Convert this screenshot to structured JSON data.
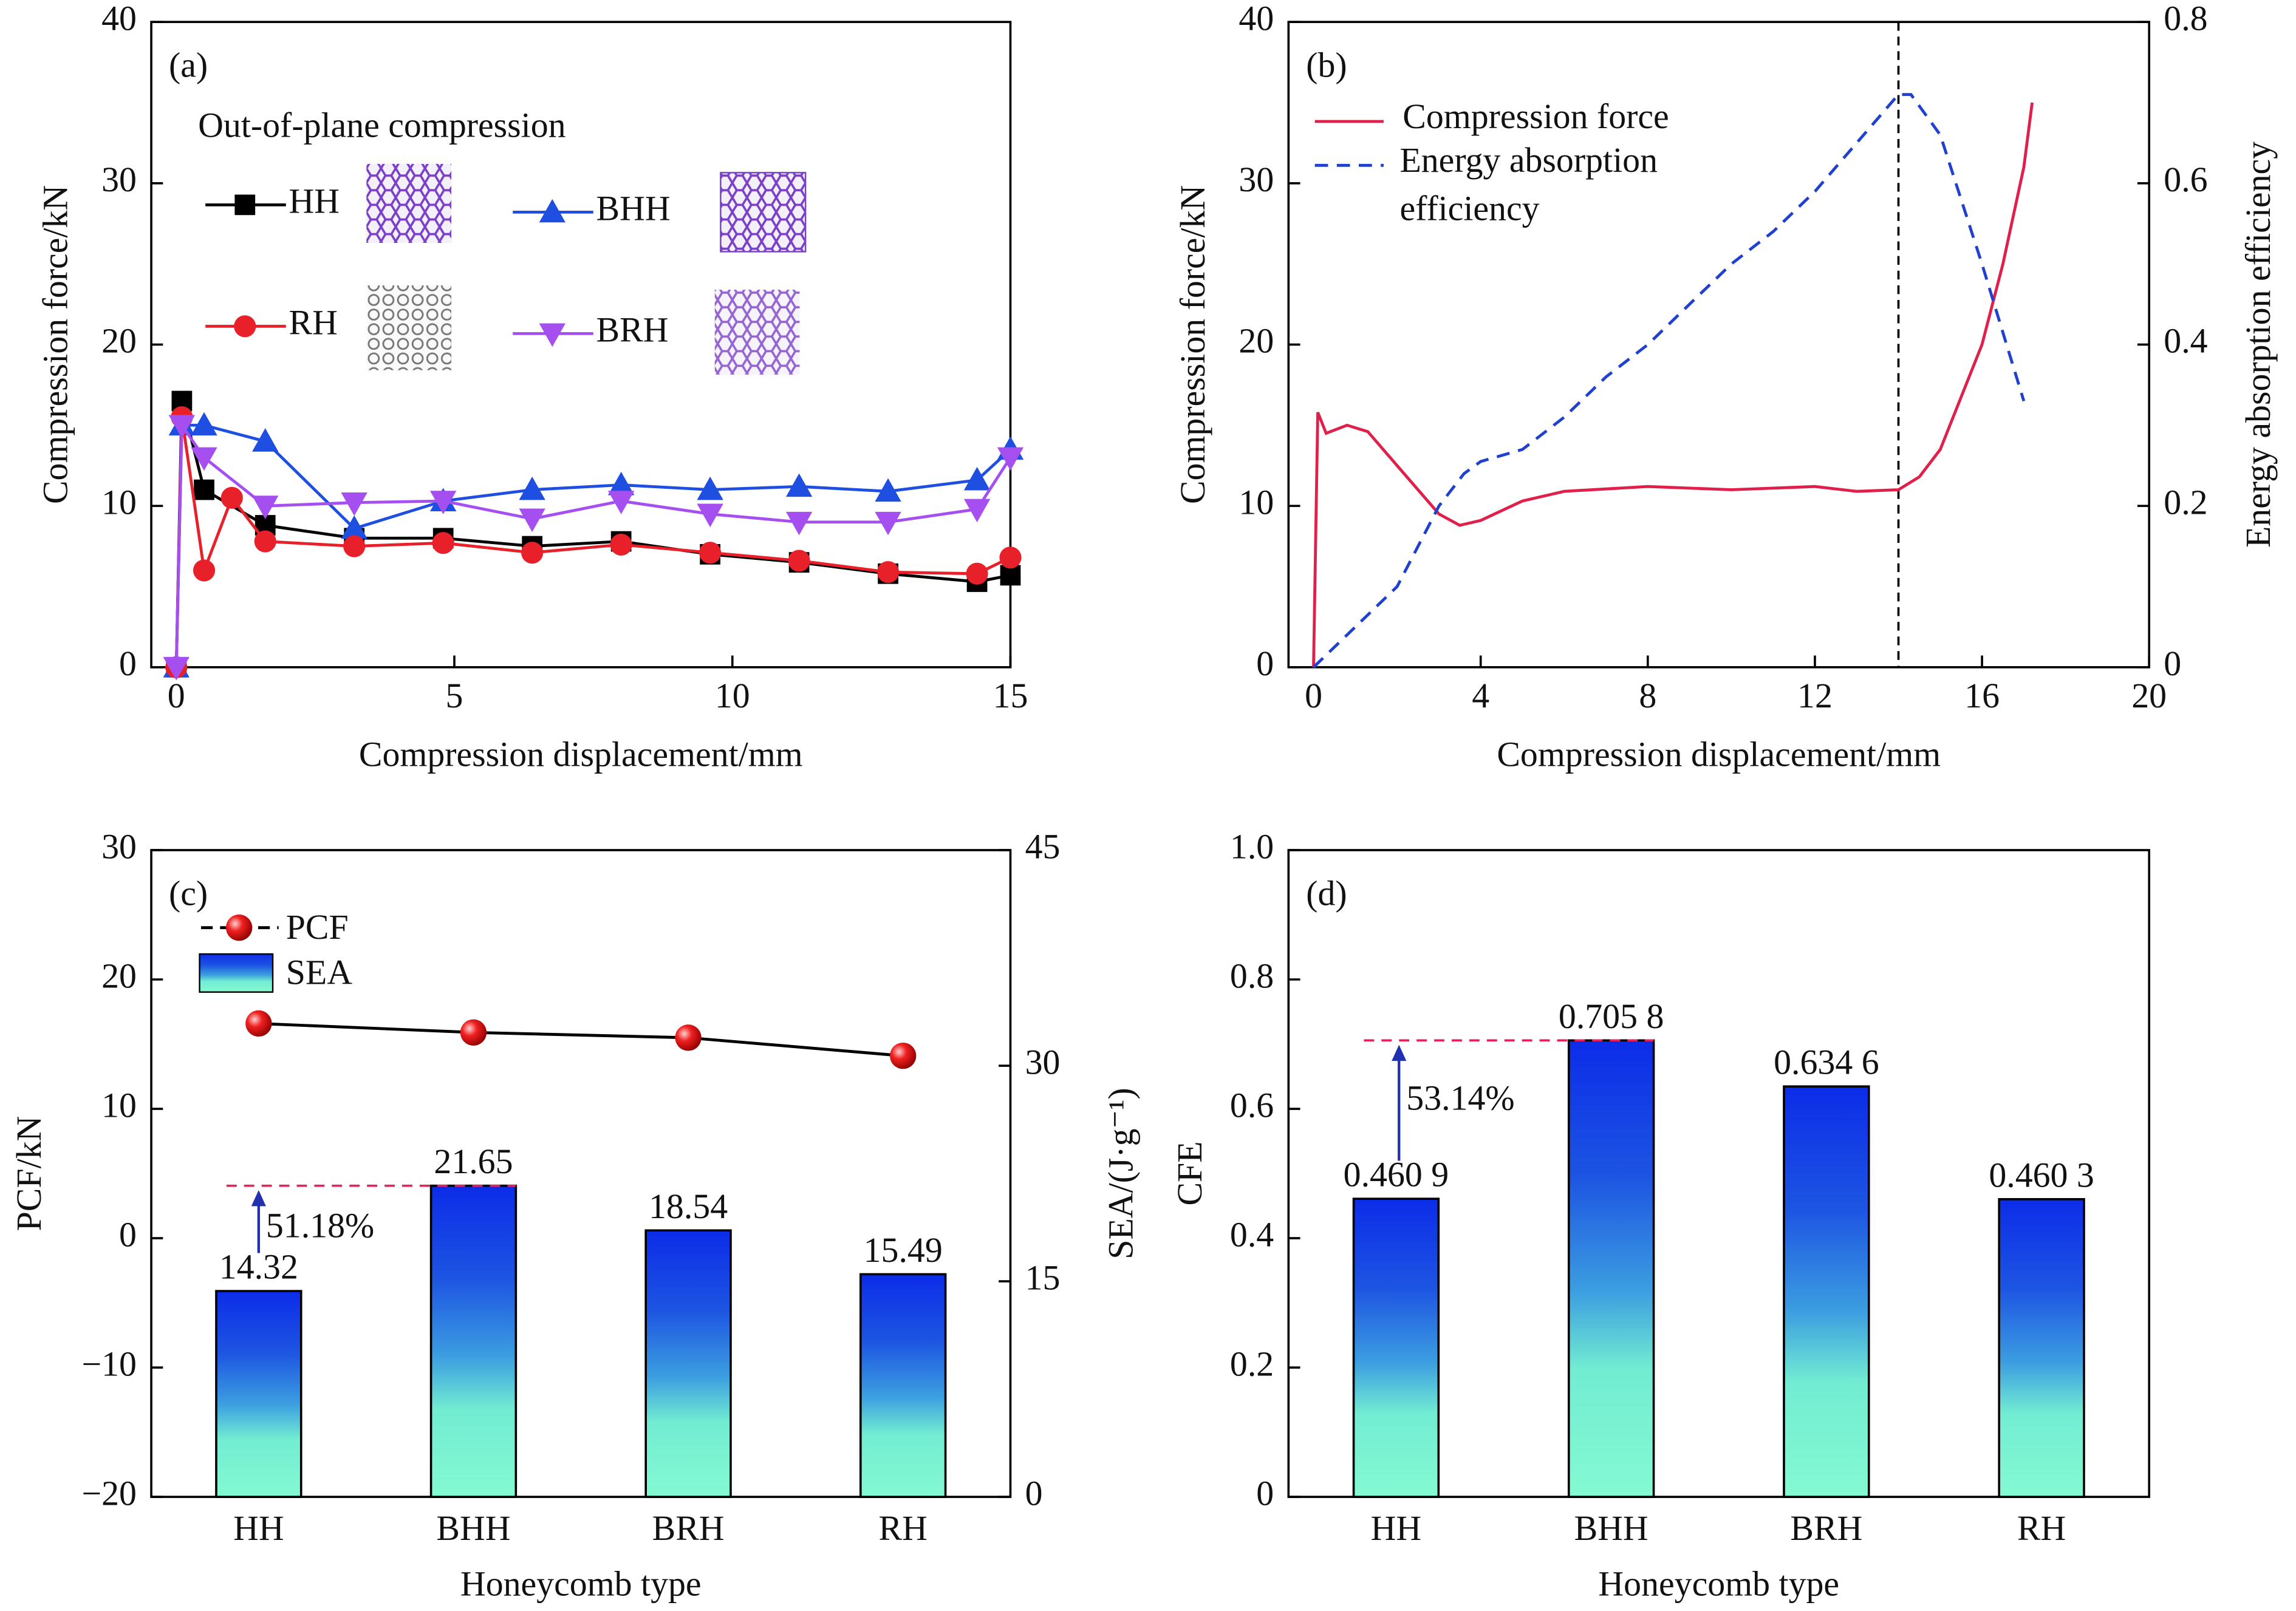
{
  "chart_data": [
    {
      "type": "line",
      "label": "(a)",
      "annotation": "Out-of-plane compression",
      "xlabel": "Compression displacement/mm",
      "ylabel": "Compression force/kN",
      "xlim": [
        -0.45,
        15
      ],
      "xticks": [
        0,
        5,
        10,
        15
      ],
      "ylim": [
        0,
        40
      ],
      "yticks": [
        0,
        10,
        20,
        30,
        40
      ],
      "series": [
        {
          "name": "HH",
          "color": "#000000",
          "marker": "square",
          "x": [
            0,
            0.1,
            0.5,
            1.6,
            3.2,
            4.8,
            6.4,
            8,
            9.6,
            11.2,
            12.8,
            14.4,
            15
          ],
          "values": [
            0,
            16.5,
            11,
            8.8,
            8,
            8,
            7.5,
            7.8,
            7,
            6.5,
            5.8,
            5.3,
            5.7
          ]
        },
        {
          "name": "BHH",
          "color": "#1f4fe0",
          "marker": "triangle",
          "x": [
            0,
            0.1,
            0.5,
            1.6,
            3.2,
            4.8,
            6.4,
            8,
            9.6,
            11.2,
            12.8,
            14.4,
            15
          ],
          "values": [
            0,
            15,
            15,
            14,
            8.6,
            10.3,
            11,
            11.3,
            11,
            11.2,
            10.9,
            11.6,
            13.5
          ]
        },
        {
          "name": "RH",
          "color": "#e8202a",
          "marker": "circle",
          "x": [
            0,
            0.1,
            0.5,
            1,
            1.6,
            3.2,
            4.8,
            6.4,
            8,
            9.6,
            11.2,
            12.8,
            14.4,
            15
          ],
          "values": [
            0,
            15.5,
            6,
            10.5,
            7.8,
            7.5,
            7.7,
            7.1,
            7.6,
            7.1,
            6.6,
            5.9,
            5.8,
            6.8
          ]
        },
        {
          "name": "BRH",
          "color": "#a64ff0",
          "marker": "triangle-down",
          "x": [
            0,
            0.1,
            0.5,
            1.6,
            3.2,
            4.8,
            6.4,
            8,
            9.6,
            11.2,
            12.8,
            14.4,
            15
          ],
          "values": [
            0,
            15,
            13,
            10,
            10.2,
            10.3,
            9.2,
            10.3,
            9.5,
            9,
            9,
            9.8,
            13
          ]
        }
      ]
    },
    {
      "type": "line",
      "label": "(b)",
      "xlabel": "Compression displacement/mm",
      "ylabel": "Compression force/kN",
      "y2label": "Energy absorption efficiency",
      "xlim": [
        -0.6,
        20
      ],
      "xticks": [
        0,
        4,
        8,
        12,
        16,
        20
      ],
      "ylim": [
        0,
        40
      ],
      "yticks": [
        0,
        10,
        20,
        30,
        40
      ],
      "y2lim": [
        0,
        0.8
      ],
      "y2ticks": [
        0,
        0.2,
        0.4,
        0.6,
        0.8
      ],
      "vline_x": 14,
      "series": [
        {
          "name": "Compression force",
          "color": "#e0204a",
          "x": [
            0,
            0.1,
            0.3,
            0.8,
            1.3,
            2,
            3,
            3.5,
            4,
            5,
            6,
            8,
            10,
            12,
            13,
            14,
            14.5,
            15,
            16,
            16.5,
            17,
            17.2
          ],
          "values": [
            0,
            15.8,
            14.5,
            15,
            14.6,
            12.5,
            9.5,
            8.8,
            9.1,
            10.3,
            10.9,
            11.2,
            11,
            11.2,
            10.9,
            11,
            11.8,
            13.5,
            20,
            25,
            31,
            35
          ]
        },
        {
          "name": "Energy absorption efficiency",
          "color": "#2040d0",
          "axis": "y2",
          "linestyle": "dashed",
          "x": [
            0,
            1,
            2,
            3,
            3.6,
            4,
            5,
            6,
            7,
            8,
            9,
            10,
            11,
            12,
            13,
            14,
            14.3,
            15,
            16,
            17
          ],
          "values": [
            0,
            0.05,
            0.1,
            0.2,
            0.24,
            0.255,
            0.27,
            0.31,
            0.36,
            0.4,
            0.45,
            0.5,
            0.54,
            0.59,
            0.65,
            0.71,
            0.71,
            0.66,
            0.5,
            0.33
          ]
        }
      ]
    },
    {
      "type": "bar",
      "label": "(c)",
      "annotation": "51.18%",
      "xlabel": "Honeycomb type",
      "ylabel": "PCF/kN",
      "y2label": "SEA/(J·g⁻¹)",
      "categories": [
        "HH",
        "BHH",
        "BRH",
        "RH"
      ],
      "ylim": [
        -20,
        30
      ],
      "yticks": [
        {
          "value": -20,
          "label": "−20"
        },
        {
          "value": -10,
          "label": "−10"
        },
        0,
        10,
        20,
        30
      ],
      "y2lim": [
        0,
        45
      ],
      "y2ticks": [
        0,
        15,
        30,
        45
      ],
      "series": [
        {
          "name": "PCF",
          "type": "line",
          "color": "#000000",
          "marker": "ball",
          "values": [
            16.6,
            15.9,
            15.5,
            14.1
          ]
        },
        {
          "name": "SEA",
          "type": "bar",
          "axis": "y2",
          "values": [
            14.32,
            21.65,
            18.54,
            15.49
          ]
        }
      ]
    },
    {
      "type": "bar",
      "label": "(d)",
      "annotation": "53.14%",
      "xlabel": "Honeycomb type",
      "ylabel": "CFE",
      "categories": [
        "HH",
        "BHH",
        "BRH",
        "RH"
      ],
      "ylim": [
        0,
        1
      ],
      "yticks": [
        0,
        0.2,
        0.4,
        0.6,
        0.8,
        {
          "value": 1,
          "label": "1.0"
        }
      ],
      "series": [
        {
          "name": "CFE",
          "type": "bar",
          "values": [
            0.4609,
            0.7058,
            0.6346,
            0.4603
          ],
          "value_labels": [
            "0.460 9",
            "0.705 8",
            "0.634 6",
            "0.460 3"
          ]
        }
      ]
    }
  ]
}
